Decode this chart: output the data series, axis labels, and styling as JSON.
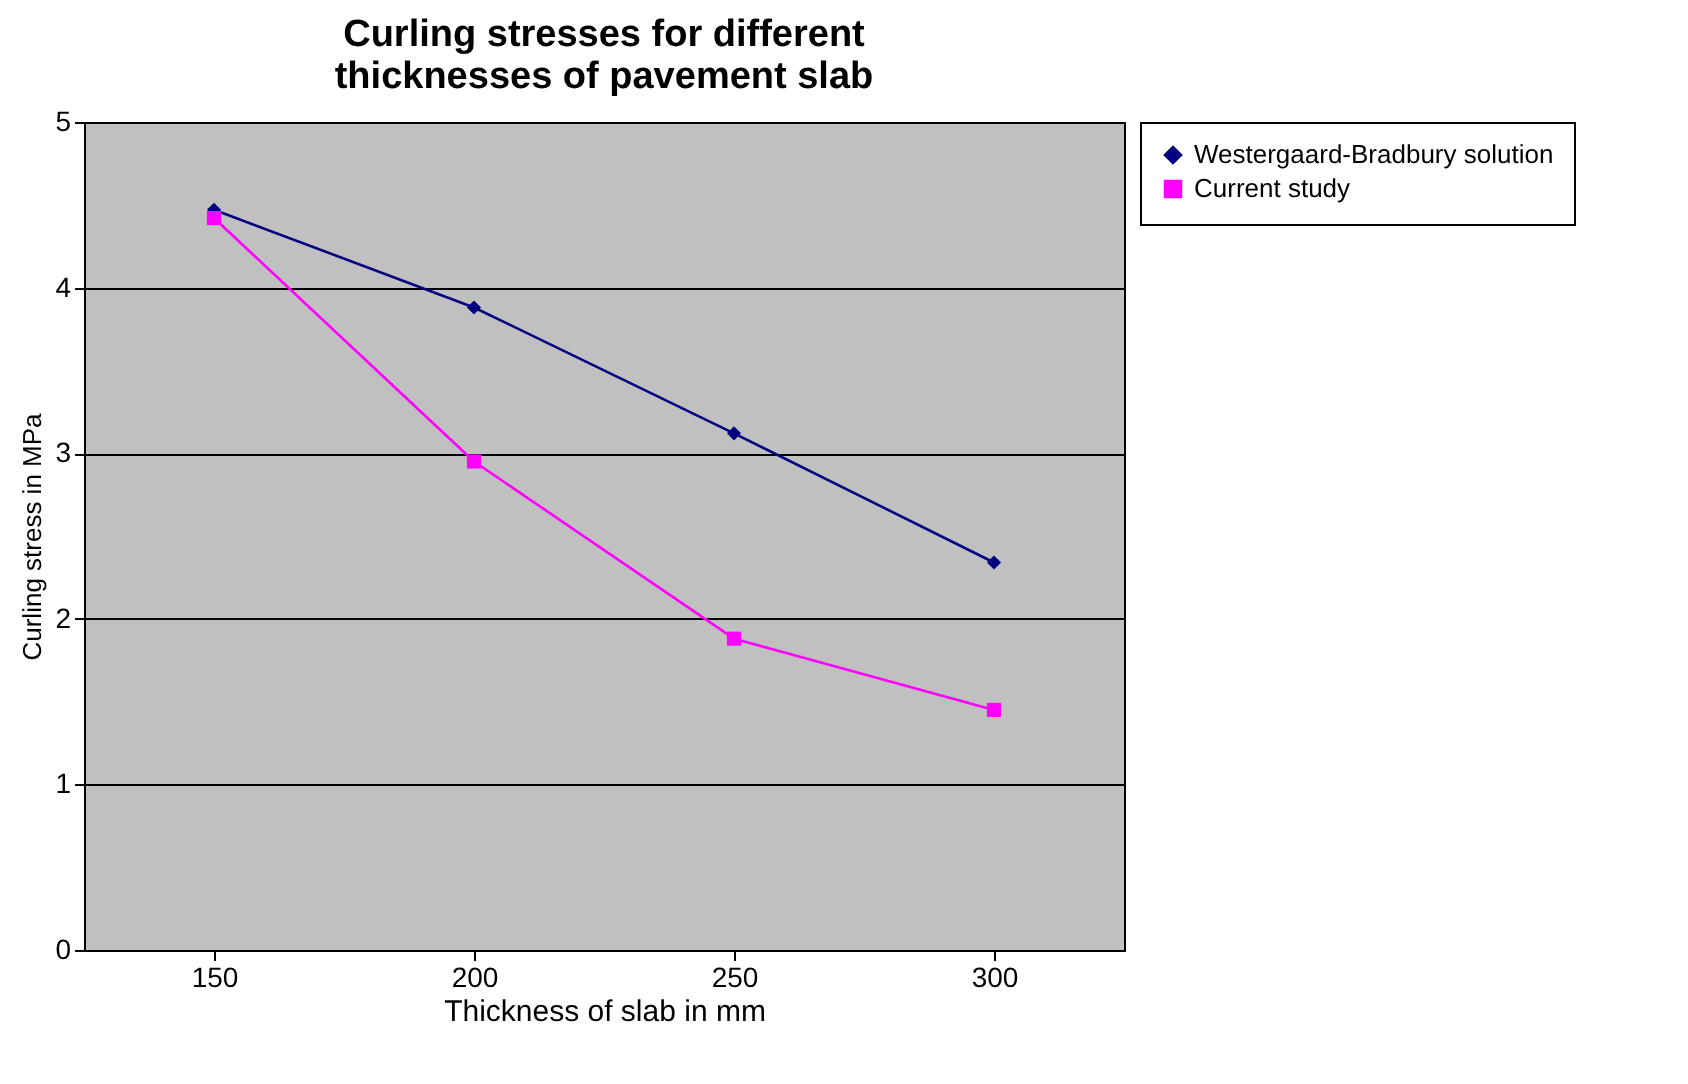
{
  "chart_data": {
    "type": "line",
    "title": "Curling stresses for different thicknesses of pavement slab",
    "xlabel": "Thickness of slab in mm",
    "ylabel": "Curling stress in MPa",
    "categories": [
      "150",
      "200",
      "250",
      "300"
    ],
    "series": [
      {
        "name": "Westergaard-Bradbury solution",
        "color": "#000080",
        "marker": "diamond",
        "values": [
          4.47,
          3.88,
          3.12,
          2.34
        ]
      },
      {
        "name": "Current study",
        "color": "#ff00ff",
        "marker": "square",
        "values": [
          4.42,
          2.95,
          1.88,
          1.45
        ]
      }
    ],
    "ylim": [
      0,
      5
    ],
    "yticks": [
      0,
      1,
      2,
      3,
      4,
      5
    ],
    "grid": "y",
    "legend": "right"
  }
}
